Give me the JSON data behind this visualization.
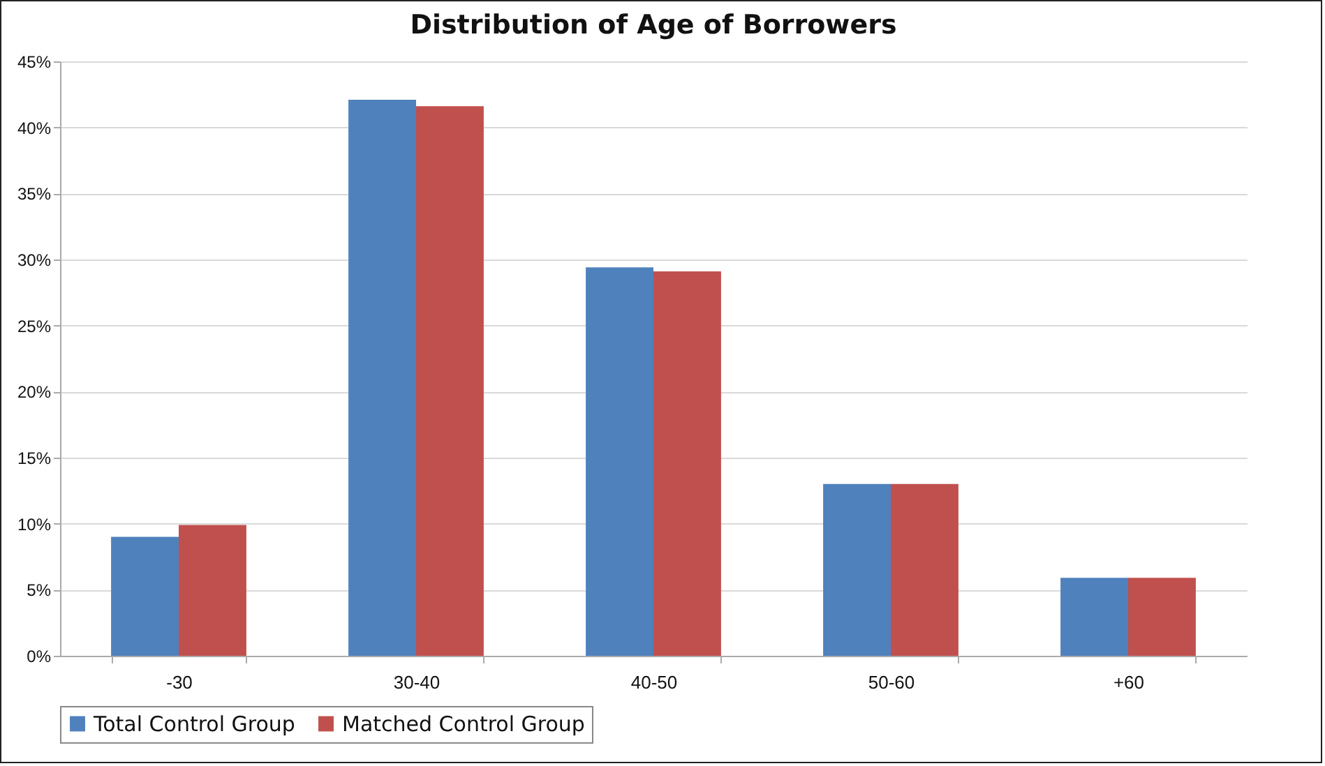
{
  "chart_data": {
    "type": "bar",
    "title": "Distribution of Age of Borrowers",
    "categories": [
      "-30",
      "30-40",
      "40-50",
      "50-60",
      "+60"
    ],
    "series": [
      {
        "name": "Total Control Group",
        "color": "#4f81bd",
        "values": [
          9.0,
          42.1,
          29.4,
          13.0,
          5.9
        ]
      },
      {
        "name": "Matched Control Group",
        "color": "#c0504d",
        "values": [
          9.9,
          41.6,
          29.1,
          13.0,
          5.9
        ]
      }
    ],
    "ylim": [
      0,
      45
    ],
    "yticks": [
      {
        "value": 0,
        "label": "0%"
      },
      {
        "value": 5,
        "label": "5%"
      },
      {
        "value": 10,
        "label": "10%"
      },
      {
        "value": 15,
        "label": "15%"
      },
      {
        "value": 20,
        "label": "20%"
      },
      {
        "value": 25,
        "label": "25%"
      },
      {
        "value": 30,
        "label": "30%"
      },
      {
        "value": 35,
        "label": "35%"
      },
      {
        "value": 40,
        "label": "40%"
      },
      {
        "value": 45,
        "label": "45%"
      }
    ],
    "grid": "y",
    "legend": "bottom"
  }
}
